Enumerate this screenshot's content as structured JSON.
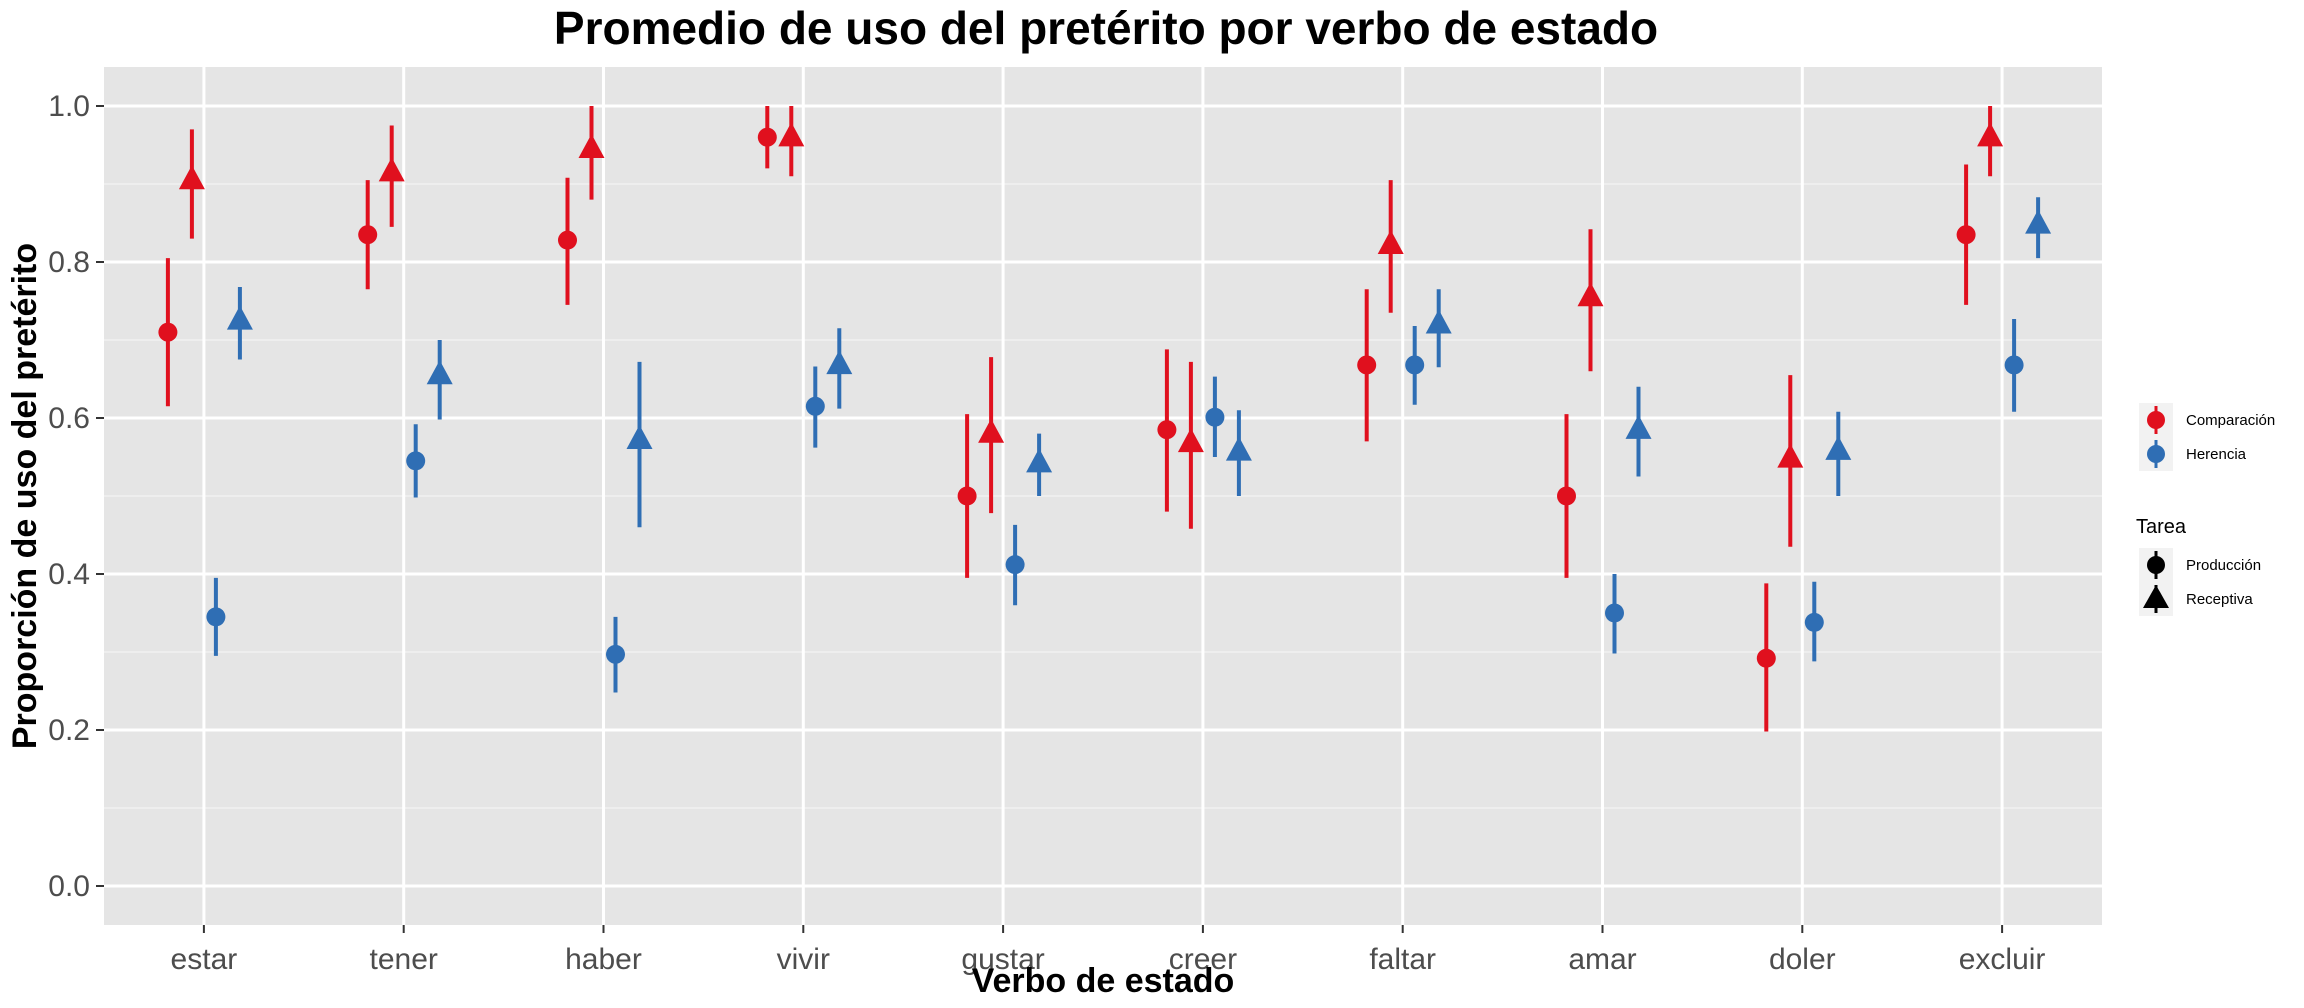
{
  "chart_data": {
    "type": "scatter",
    "subtype": "pointrange",
    "title": "Promedio de uso del pretérito por verbo de estado",
    "xlabel": "Verbo de estado",
    "ylabel": "Proporción de uso del pretérito",
    "ylim": [
      -0.05,
      1.05
    ],
    "yticks": [
      "0.0",
      "0.2",
      "0.4",
      "0.6",
      "0.8",
      "1.0"
    ],
    "grid": true,
    "categories": [
      "estar",
      "tener",
      "haber",
      "vivir",
      "gustar",
      "creer",
      "faltar",
      "amar",
      "doler",
      "excluir"
    ],
    "colors": {
      "Comparación": "#e0101e",
      "Herencia": "#2f6eb4",
      "panel": "#e5e5e5",
      "grid": "#ffffff"
    },
    "legend": {
      "position": "right",
      "group_entries": [
        "Comparación",
        "Herencia"
      ],
      "shape_title": "Tarea",
      "shape_entries": [
        "Producción",
        "Receptiva"
      ]
    },
    "series": [
      {
        "name": "Comparación",
        "tarea": "Producción",
        "shape": "circle",
        "values": [
          0.71,
          0.835,
          0.828,
          0.96,
          0.5,
          0.585,
          0.668,
          0.5,
          0.292,
          0.835
        ],
        "lower": [
          0.615,
          0.765,
          0.745,
          0.92,
          0.395,
          0.48,
          0.57,
          0.395,
          0.198,
          0.745
        ],
        "upper": [
          0.805,
          0.905,
          0.908,
          1.0,
          0.605,
          0.688,
          0.765,
          0.605,
          0.388,
          0.925
        ]
      },
      {
        "name": "Comparación",
        "tarea": "Receptiva",
        "shape": "triangle",
        "values": [
          0.905,
          0.915,
          0.945,
          0.96,
          0.58,
          0.568,
          0.822,
          0.755,
          0.548,
          0.96
        ],
        "lower": [
          0.83,
          0.845,
          0.88,
          0.91,
          0.478,
          0.458,
          0.735,
          0.66,
          0.435,
          0.91
        ],
        "upper": [
          0.97,
          0.975,
          1.0,
          1.0,
          0.678,
          0.672,
          0.905,
          0.842,
          0.655,
          1.0
        ]
      },
      {
        "name": "Herencia",
        "tarea": "Producción",
        "shape": "circle",
        "values": [
          0.345,
          0.545,
          0.297,
          0.615,
          0.412,
          0.601,
          0.668,
          0.35,
          0.338,
          0.668
        ],
        "lower": [
          0.295,
          0.498,
          0.248,
          0.562,
          0.36,
          0.55,
          0.617,
          0.298,
          0.288,
          0.608
        ],
        "upper": [
          0.395,
          0.592,
          0.345,
          0.666,
          0.463,
          0.653,
          0.718,
          0.4,
          0.39,
          0.727
        ]
      },
      {
        "name": "Herencia",
        "tarea": "Receptiva",
        "shape": "triangle",
        "values": [
          0.725,
          0.655,
          0.572,
          0.668,
          0.542,
          0.557,
          0.72,
          0.585,
          0.558,
          0.848
        ],
        "lower": [
          0.675,
          0.598,
          0.46,
          0.612,
          0.5,
          0.5,
          0.665,
          0.525,
          0.5,
          0.805
        ],
        "upper": [
          0.768,
          0.7,
          0.672,
          0.715,
          0.58,
          0.61,
          0.765,
          0.64,
          0.608,
          0.883
        ]
      }
    ]
  }
}
